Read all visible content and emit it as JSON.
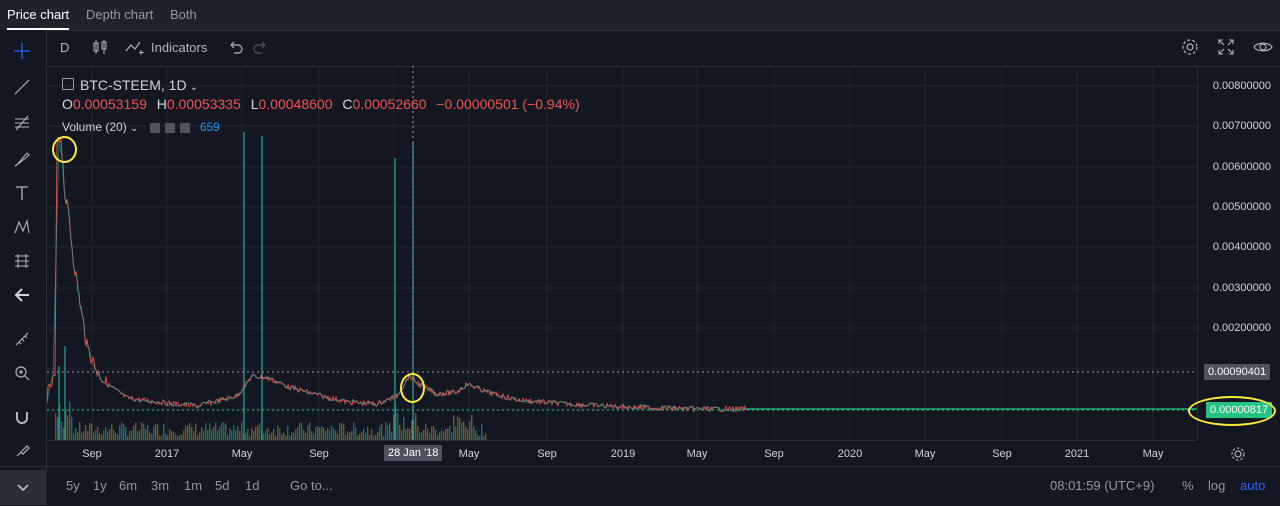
{
  "tabs": [
    {
      "label": "Price chart",
      "active": true
    },
    {
      "label": "Depth chart",
      "active": false
    },
    {
      "label": "Both",
      "active": false
    }
  ],
  "toolbar": {
    "interval": "D",
    "indicators_label": "Indicators"
  },
  "legend": {
    "symbol": "BTC-STEEM, 1D",
    "open_key": "O",
    "open": "0.00053159",
    "high_key": "H",
    "high": "0.00053335",
    "low_key": "L",
    "low": "0.00048600",
    "close_key": "C",
    "close": "0.00052660",
    "change": "−0.00000501 (−0.94%)",
    "volume_label": "Volume (20)",
    "volume_value": "659"
  },
  "price_axis": {
    "ticks": [
      "0.00800000",
      "0.00700000",
      "0.00600000",
      "0.00500000",
      "0.00400000",
      "0.00300000",
      "0.00200000"
    ],
    "crosshair_price": "0.00090401",
    "last_price": "0.00000817"
  },
  "time_axis": {
    "ticks": [
      "Sep",
      "2017",
      "May",
      "Sep",
      "May",
      "Sep",
      "2019",
      "May",
      "Sep",
      "2020",
      "May",
      "Sep",
      "2021",
      "May"
    ],
    "crosshair_date": "28 Jan '18"
  },
  "bottom": {
    "ranges": [
      "5y",
      "1y",
      "6m",
      "3m",
      "1m",
      "5d",
      "1d"
    ],
    "goto_label": "Go to...",
    "clock": "08:01:59 (UTC+9)",
    "percent_label": "%",
    "log_label": "log",
    "auto_label": "auto"
  },
  "colors": {
    "background": "#131722",
    "price_line": "#ef5350",
    "volume_green": "#26a69a",
    "highlight": "#ffeb3b",
    "last_price_badge": "#26c281"
  },
  "icons": [
    "crosshair-icon",
    "trend-line-icon",
    "fib-icon",
    "brush-icon",
    "text-icon",
    "pattern-icon",
    "measure-icon",
    "back-arrow-icon",
    "ruler-icon",
    "zoom-icon",
    "magnet-icon",
    "lock-icon",
    "settings-icon",
    "fullscreen-icon",
    "eye-icon",
    "undo-icon",
    "redo-icon",
    "candles-icon"
  ]
}
